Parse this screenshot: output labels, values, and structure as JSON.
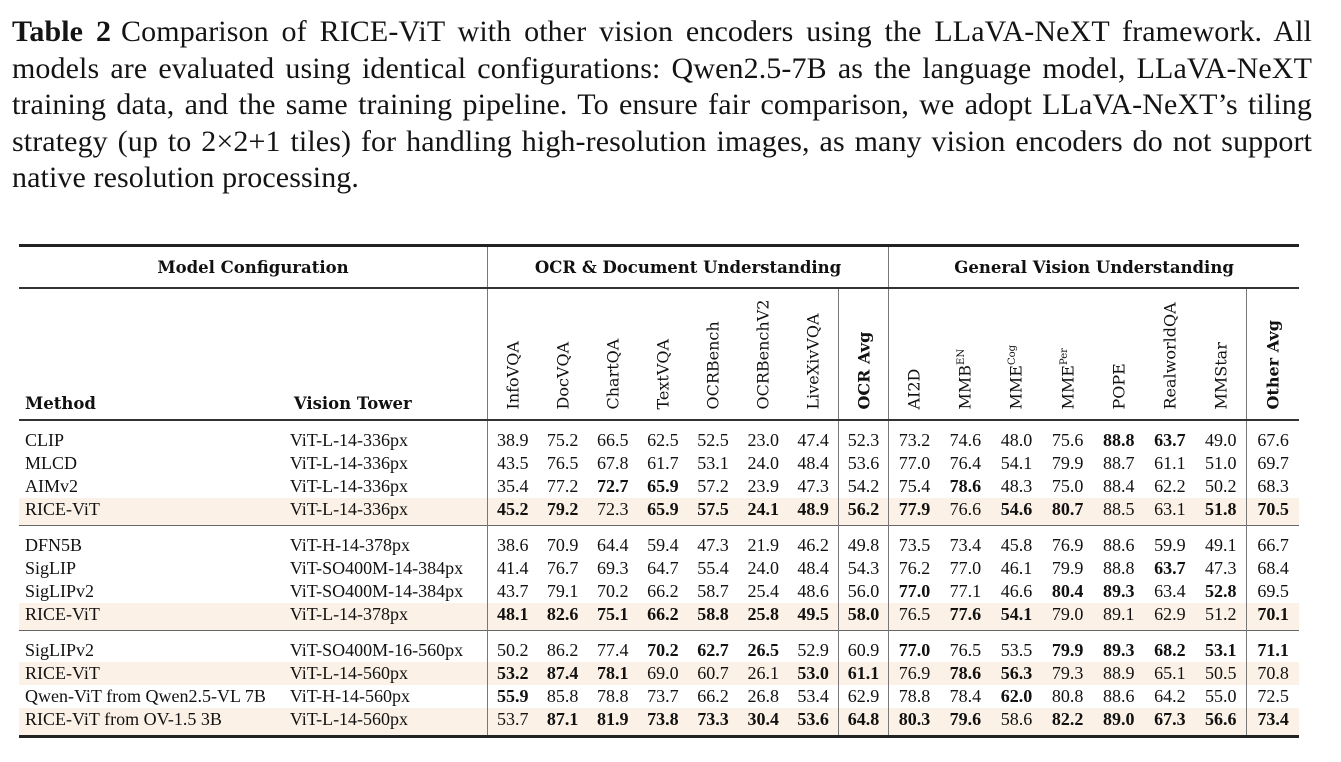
{
  "caption": {
    "label": "Table 2",
    "text": "Comparison of RICE-ViT with other vision encoders using the LLaVA-NeXT framework. All models are evaluated using identical configurations: Qwen2.5-7B as the language model, LLaVA-NeXT training data, and the same training pipeline. To ensure fair comparison, we adopt LLaVA-NeXT’s tiling strategy (up to 2×2+1 tiles) for handling high-resolution images, as many vision encoders do not support native resolution processing."
  },
  "table": {
    "groups": {
      "model": "Model Configuration",
      "ocr": "OCR & Document Understanding",
      "general": "General Vision Understanding"
    },
    "headers": {
      "method": "Method",
      "vision_tower": "Vision Tower",
      "ocr_cols": [
        "InfoVQA",
        "DocVQA",
        "ChartQA",
        "TextVQA",
        "OCRBench",
        "OCRBenchV2",
        "LiveXivVQA"
      ],
      "ocr_avg": "OCR Avg",
      "general_cols": [
        {
          "base": "AI2D",
          "sup": ""
        },
        {
          "base": "MMB",
          "sup": "EN"
        },
        {
          "base": "MME",
          "sup": "Cog"
        },
        {
          "base": "MME",
          "sup": "Per"
        },
        {
          "base": "POPE",
          "sup": ""
        },
        {
          "base": "RealworldQA",
          "sup": ""
        },
        {
          "base": "MMStar",
          "sup": ""
        }
      ],
      "other_avg": "Other Avg"
    },
    "highlight_color": "#fbf1e6",
    "row_groups": [
      {
        "rows": [
          {
            "method": "CLIP",
            "tower": "ViT-L-14-336px",
            "highlight": false,
            "values": [
              "38.9",
              "75.2",
              "66.5",
              "62.5",
              "52.5",
              "23.0",
              "47.4",
              "52.3",
              "73.2",
              "74.6",
              "48.0",
              "75.6",
              "88.8",
              "63.7",
              "49.0",
              "67.6"
            ],
            "bold": [
              false,
              false,
              false,
              false,
              false,
              false,
              false,
              false,
              false,
              false,
              false,
              false,
              true,
              true,
              false,
              false
            ]
          },
          {
            "method": "MLCD",
            "tower": "ViT-L-14-336px",
            "highlight": false,
            "values": [
              "43.5",
              "76.5",
              "67.8",
              "61.7",
              "53.1",
              "24.0",
              "48.4",
              "53.6",
              "77.0",
              "76.4",
              "54.1",
              "79.9",
              "88.7",
              "61.1",
              "51.0",
              "69.7"
            ],
            "bold": [
              false,
              false,
              false,
              false,
              false,
              false,
              false,
              false,
              false,
              false,
              false,
              false,
              false,
              false,
              false,
              false
            ]
          },
          {
            "method": "AIMv2",
            "tower": "ViT-L-14-336px",
            "highlight": false,
            "values": [
              "35.4",
              "77.2",
              "72.7",
              "65.9",
              "57.2",
              "23.9",
              "47.3",
              "54.2",
              "75.4",
              "78.6",
              "48.3",
              "75.0",
              "88.4",
              "62.2",
              "50.2",
              "68.3"
            ],
            "bold": [
              false,
              false,
              true,
              true,
              false,
              false,
              false,
              false,
              false,
              true,
              false,
              false,
              false,
              false,
              false,
              false
            ]
          },
          {
            "method": "RICE-ViT",
            "tower": "ViT-L-14-336px",
            "highlight": true,
            "values": [
              "45.2",
              "79.2",
              "72.3",
              "65.9",
              "57.5",
              "24.1",
              "48.9",
              "56.2",
              "77.9",
              "76.6",
              "54.6",
              "80.7",
              "88.5",
              "63.1",
              "51.8",
              "70.5"
            ],
            "bold": [
              true,
              true,
              false,
              true,
              true,
              true,
              true,
              true,
              true,
              false,
              true,
              true,
              false,
              false,
              true,
              true
            ]
          }
        ]
      },
      {
        "rows": [
          {
            "method": "DFN5B",
            "tower": "ViT-H-14-378px",
            "highlight": false,
            "values": [
              "38.6",
              "70.9",
              "64.4",
              "59.4",
              "47.3",
              "21.9",
              "46.2",
              "49.8",
              "73.5",
              "73.4",
              "45.8",
              "76.9",
              "88.6",
              "59.9",
              "49.1",
              "66.7"
            ],
            "bold": [
              false,
              false,
              false,
              false,
              false,
              false,
              false,
              false,
              false,
              false,
              false,
              false,
              false,
              false,
              false,
              false
            ]
          },
          {
            "method": "SigLIP",
            "tower": "ViT-SO400M-14-384px",
            "highlight": false,
            "values": [
              "41.4",
              "76.7",
              "69.3",
              "64.7",
              "55.4",
              "24.0",
              "48.4",
              "54.3",
              "76.2",
              "77.0",
              "46.1",
              "79.9",
              "88.8",
              "63.7",
              "47.3",
              "68.4"
            ],
            "bold": [
              false,
              false,
              false,
              false,
              false,
              false,
              false,
              false,
              false,
              false,
              false,
              false,
              false,
              true,
              false,
              false
            ]
          },
          {
            "method": "SigLIPv2",
            "tower": "ViT-SO400M-14-384px",
            "highlight": false,
            "values": [
              "43.7",
              "79.1",
              "70.2",
              "66.2",
              "58.7",
              "25.4",
              "48.6",
              "56.0",
              "77.0",
              "77.1",
              "46.6",
              "80.4",
              "89.3",
              "63.4",
              "52.8",
              "69.5"
            ],
            "bold": [
              false,
              false,
              false,
              false,
              false,
              false,
              false,
              false,
              true,
              false,
              false,
              true,
              true,
              false,
              true,
              false
            ]
          },
          {
            "method": "RICE-ViT",
            "tower": "ViT-L-14-378px",
            "highlight": true,
            "values": [
              "48.1",
              "82.6",
              "75.1",
              "66.2",
              "58.8",
              "25.8",
              "49.5",
              "58.0",
              "76.5",
              "77.6",
              "54.1",
              "79.0",
              "89.1",
              "62.9",
              "51.2",
              "70.1"
            ],
            "bold": [
              true,
              true,
              true,
              true,
              true,
              true,
              true,
              true,
              false,
              true,
              true,
              false,
              false,
              false,
              false,
              true
            ]
          }
        ]
      },
      {
        "rows": [
          {
            "method": "SigLIPv2",
            "tower": "ViT-SO400M-16-560px",
            "highlight": false,
            "values": [
              "50.2",
              "86.2",
              "77.4",
              "70.2",
              "62.7",
              "26.5",
              "52.9",
              "60.9",
              "77.0",
              "76.5",
              "53.5",
              "79.9",
              "89.3",
              "68.2",
              "53.1",
              "71.1"
            ],
            "bold": [
              false,
              false,
              false,
              true,
              true,
              true,
              false,
              false,
              true,
              false,
              false,
              true,
              true,
              true,
              true,
              true
            ]
          },
          {
            "method": "RICE-ViT",
            "tower": "ViT-L-14-560px",
            "highlight": true,
            "values": [
              "53.2",
              "87.4",
              "78.1",
              "69.0",
              "60.7",
              "26.1",
              "53.0",
              "61.1",
              "76.9",
              "78.6",
              "56.3",
              "79.3",
              "88.9",
              "65.1",
              "50.5",
              "70.8"
            ],
            "bold": [
              true,
              true,
              true,
              false,
              false,
              false,
              true,
              true,
              false,
              true,
              true,
              false,
              false,
              false,
              false,
              false
            ]
          },
          {
            "method": "Qwen-ViT from Qwen2.5-VL 7B",
            "tower": "ViT-H-14-560px",
            "highlight": false,
            "values": [
              "55.9",
              "85.8",
              "78.8",
              "73.7",
              "66.2",
              "26.8",
              "53.4",
              "62.9",
              "78.8",
              "78.4",
              "62.0",
              "80.8",
              "88.6",
              "64.2",
              "55.0",
              "72.5"
            ],
            "bold": [
              true,
              false,
              false,
              false,
              false,
              false,
              false,
              false,
              false,
              false,
              true,
              false,
              false,
              false,
              false,
              false
            ]
          },
          {
            "method": "RICE-ViT from OV-1.5 3B",
            "tower": "ViT-L-14-560px",
            "highlight": true,
            "values": [
              "53.7",
              "87.1",
              "81.9",
              "73.8",
              "73.3",
              "30.4",
              "53.6",
              "64.8",
              "80.3",
              "79.6",
              "58.6",
              "82.2",
              "89.0",
              "67.3",
              "56.6",
              "73.4"
            ],
            "bold": [
              false,
              true,
              true,
              true,
              true,
              true,
              true,
              true,
              true,
              true,
              false,
              true,
              true,
              true,
              true,
              true
            ]
          }
        ]
      }
    ]
  }
}
